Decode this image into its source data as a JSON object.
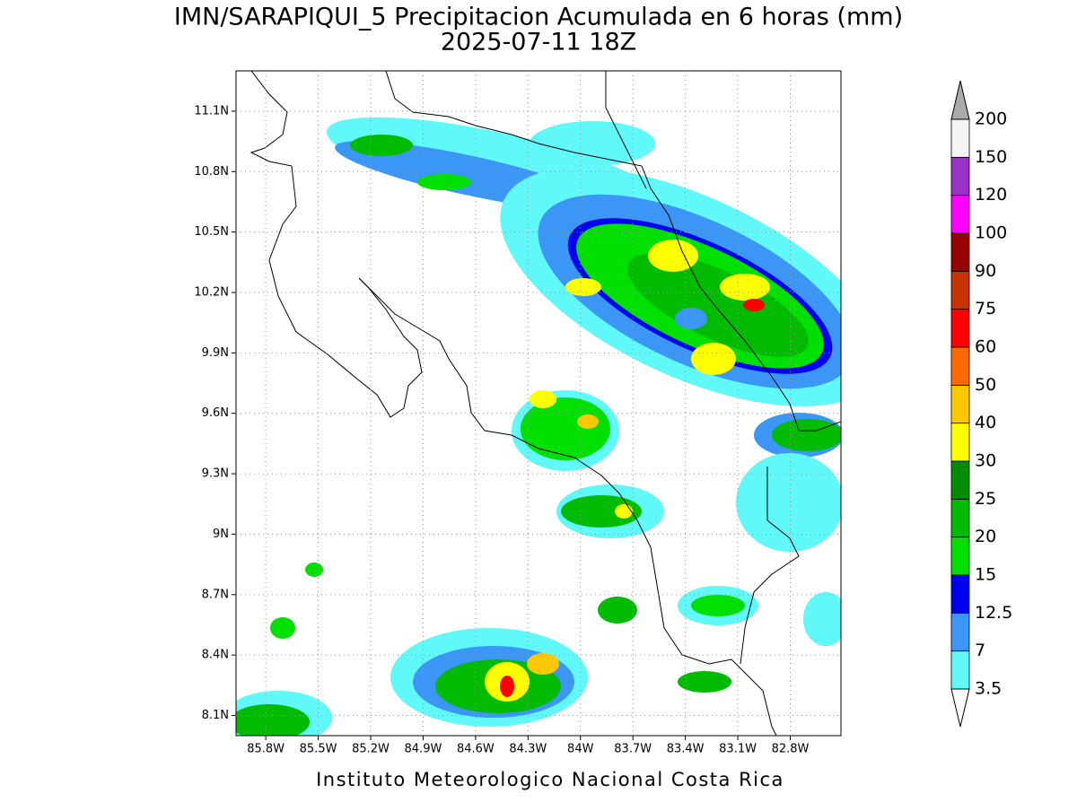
{
  "title": "IMN/SARAPIQUI_5 Precipitacion Acumulada en 6 horas (mm)",
  "subtitle": "2025-07-11 18Z",
  "map": {
    "xlim": [
      -85.97,
      -82.51
    ],
    "ylim": [
      8.0,
      11.3
    ],
    "xticks": [
      {
        "value": -85.8,
        "label": "85.8W"
      },
      {
        "value": -85.5,
        "label": "85.5W"
      },
      {
        "value": -85.2,
        "label": "85.2W"
      },
      {
        "value": -84.9,
        "label": "84.9W"
      },
      {
        "value": -84.6,
        "label": "84.6W"
      },
      {
        "value": -84.3,
        "label": "84.3W"
      },
      {
        "value": -84.0,
        "label": "84W"
      },
      {
        "value": -83.7,
        "label": "83.7W"
      },
      {
        "value": -83.4,
        "label": "83.4W"
      },
      {
        "value": -83.1,
        "label": "83.1W"
      },
      {
        "value": -82.8,
        "label": "82.8W"
      }
    ],
    "yticks": [
      {
        "value": 8.1,
        "label": "8.1N"
      },
      {
        "value": 8.4,
        "label": "8.4N"
      },
      {
        "value": 8.7,
        "label": "8.7N"
      },
      {
        "value": 9.0,
        "label": "9N"
      },
      {
        "value": 9.3,
        "label": "9.3N"
      },
      {
        "value": 9.6,
        "label": "9.6N"
      },
      {
        "value": 9.9,
        "label": "9.9N"
      },
      {
        "value": 10.2,
        "label": "10.2N"
      },
      {
        "value": 10.5,
        "label": "10.5N"
      },
      {
        "value": 10.8,
        "label": "10.8N"
      },
      {
        "value": 11.1,
        "label": "11.1N"
      }
    ],
    "grid": true
  },
  "colorbar": {
    "levels": [
      3.5,
      7,
      12.5,
      15,
      20,
      25,
      30,
      40,
      50,
      60,
      75,
      90,
      100,
      120,
      150,
      200
    ],
    "colors": [
      "#60f8f8",
      "#3c96f5",
      "#0000f0",
      "#00e000",
      "#00bb00",
      "#008c00",
      "#ffff00",
      "#ffc800",
      "#ff6a00",
      "#ff0000",
      "#c83200",
      "#960000",
      "#ff00ff",
      "#9a32c8",
      "#f4f4f4"
    ],
    "under_color": "#ffffff",
    "over_color": "#aaaaaa"
  },
  "footer": "Instituto Meteorologico Nacional Costa Rica"
}
